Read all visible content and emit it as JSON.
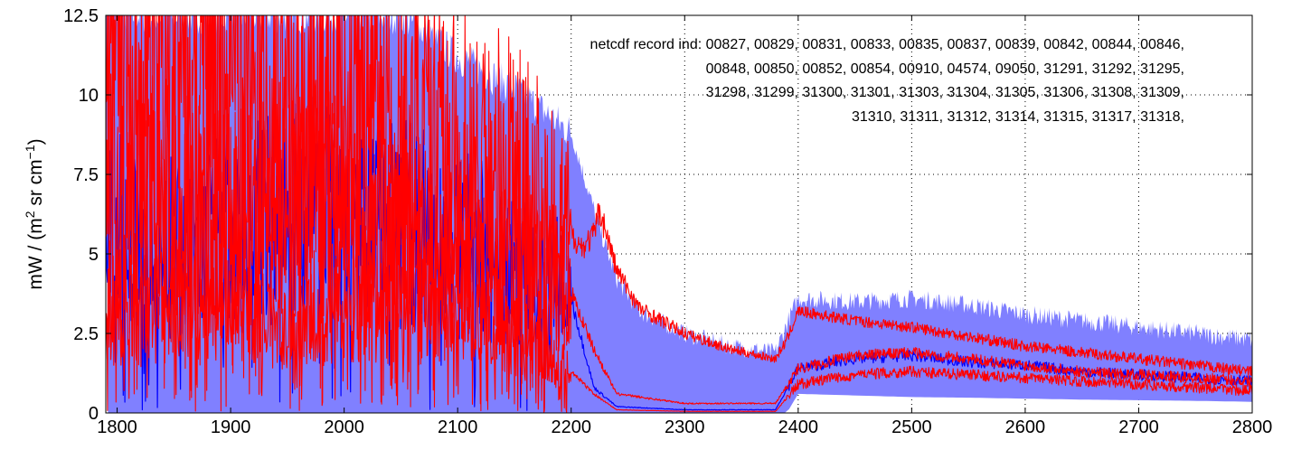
{
  "chart_data": {
    "type": "line",
    "title": "",
    "xlabel": "",
    "ylabel": "mW / (m² sr cm⁻¹)",
    "ylabel_parts": {
      "pre": "mW / (m",
      "sup1": "2",
      "mid": " sr cm",
      "sup2": "−1",
      "post": ")"
    },
    "xlim": [
      1790,
      2800
    ],
    "ylim": [
      0,
      12.5
    ],
    "x_ticks": [
      1800,
      1900,
      2000,
      2100,
      2200,
      2300,
      2400,
      2500,
      2600,
      2700,
      2800
    ],
    "y_ticks": [
      0,
      2.5,
      5,
      7.5,
      10,
      12.5
    ],
    "y_tick_labels": [
      "0",
      "2.5",
      "5",
      "7.5",
      "10",
      "12.5"
    ],
    "grid": true,
    "annotation_lines": [
      "netcdf record ind:  00827, 00829, 00831, 00833, 00835, 00837, 00839, 00842, 00844, 00846,",
      "00848, 00850, 00852, 00854, 00910, 04574, 09050, 31291, 31292, 31295,",
      "31298, 31299, 31300, 31301, 31303, 31304, 31305, 31306, 31308, 31309,",
      "31310, 31311, 31312, 31314, 31315, 31317, 31318,"
    ],
    "series": [
      {
        "role": "envelope",
        "color": "#8080ff",
        "x": [
          1790,
          1800,
          1850,
          1900,
          1950,
          2000,
          2050,
          2100,
          2150,
          2200,
          2215,
          2225,
          2240,
          2260,
          2300,
          2340,
          2380,
          2390,
          2400,
          2450,
          2500,
          2550,
          2600,
          2650,
          2700,
          2750,
          2800
        ],
        "upper": [
          12.5,
          12.5,
          12.5,
          12.5,
          12.5,
          12.5,
          12.5,
          11.2,
          10.2,
          8.8,
          7.0,
          5.8,
          4.2,
          3.2,
          2.5,
          2.1,
          1.9,
          2.8,
          3.6,
          3.5,
          3.6,
          3.4,
          3.1,
          2.9,
          2.7,
          2.5,
          2.3
        ],
        "lower": [
          0,
          0,
          0,
          0,
          0,
          0,
          0,
          0,
          0,
          0,
          0,
          0,
          0,
          0,
          0,
          0,
          0,
          0,
          0.6,
          0.55,
          0.5,
          0.48,
          0.45,
          0.42,
          0.4,
          0.38,
          0.35
        ]
      },
      {
        "role": "mean",
        "color": "#0000ff",
        "x": [
          1800,
          1850,
          1900,
          1950,
          2000,
          2050,
          2100,
          2150,
          2200,
          2220,
          2240,
          2300,
          2380,
          2400,
          2450,
          2500,
          2550,
          2600,
          2650,
          2700,
          2750,
          2800
        ],
        "y": [
          5.5,
          5.0,
          5.5,
          6.0,
          6.5,
          5.8,
          5.2,
          4.6,
          3.6,
          0.8,
          0.2,
          0.1,
          0.1,
          1.4,
          1.7,
          1.8,
          1.6,
          1.5,
          1.3,
          1.2,
          1.1,
          1.0
        ]
      },
      {
        "role": "upper-red",
        "color": "#ff0000",
        "x": [
          1800,
          1850,
          1900,
          1950,
          2000,
          2050,
          2100,
          2150,
          2200,
          2210,
          2220,
          2225,
          2240,
          2260,
          2300,
          2340,
          2380,
          2390,
          2400,
          2450,
          2500,
          2550,
          2600,
          2650,
          2700,
          2750,
          2800
        ],
        "y": [
          11.8,
          11.2,
          10.6,
          10.0,
          9.5,
          8.8,
          8.2,
          7.3,
          5.6,
          5.2,
          5.6,
          6.4,
          4.5,
          3.3,
          2.5,
          2.0,
          1.7,
          2.3,
          3.2,
          2.9,
          2.7,
          2.4,
          2.1,
          1.9,
          1.7,
          1.5,
          1.3
        ]
      },
      {
        "role": "middle-red",
        "color": "#ff0000",
        "x": [
          1800,
          1850,
          1900,
          1950,
          2000,
          2050,
          2100,
          2150,
          2200,
          2220,
          2240,
          2300,
          2380,
          2400,
          2450,
          2500,
          2550,
          2600,
          2650,
          2700,
          2750,
          2800
        ],
        "y": [
          7.0,
          6.8,
          6.5,
          6.6,
          6.2,
          5.6,
          5.0,
          4.5,
          3.8,
          2.0,
          0.6,
          0.3,
          0.3,
          1.4,
          1.8,
          1.9,
          1.7,
          1.5,
          1.3,
          1.2,
          1.1,
          1.0
        ]
      },
      {
        "role": "lower-red",
        "color": "#ff0000",
        "x": [
          1800,
          1850,
          1900,
          1950,
          2000,
          2050,
          2100,
          2150,
          2200,
          2220,
          2240,
          2300,
          2380,
          2400,
          2450,
          2500,
          2550,
          2600,
          2650,
          2700,
          2750,
          2800
        ],
        "y": [
          3.2,
          3.4,
          3.3,
          3.0,
          3.4,
          3.6,
          3.2,
          2.4,
          1.3,
          0.6,
          0.1,
          0.05,
          0.05,
          0.9,
          1.2,
          1.3,
          1.2,
          1.1,
          1.0,
          0.9,
          0.8,
          0.7
        ]
      }
    ]
  }
}
